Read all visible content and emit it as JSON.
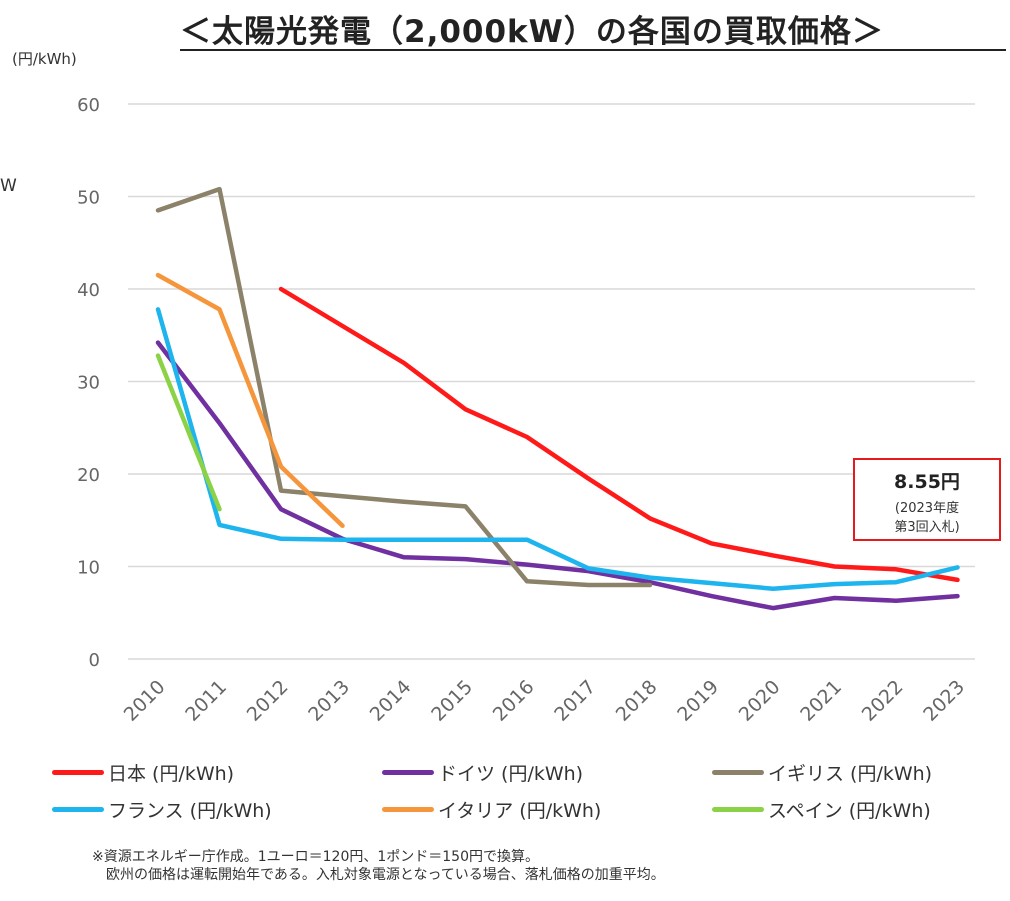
{
  "chart_data": {
    "type": "line",
    "title": "＜太陽光発電（2,000kW）の各国の買取価格＞",
    "ylabel": "(円/kWh)",
    "ylim": [
      0,
      60
    ],
    "yticks": [
      0,
      10,
      20,
      30,
      40,
      50,
      60
    ],
    "categories": [
      "2010",
      "2011",
      "2012",
      "2013",
      "2014",
      "2015",
      "2016",
      "2017",
      "2018",
      "2019",
      "2020",
      "2021",
      "2022",
      "2023"
    ],
    "grid": true,
    "legend_position": "bottom",
    "series": [
      {
        "name": "日本 (円/kWh)",
        "color": "#ff1a1a",
        "values": [
          null,
          null,
          40,
          36,
          32,
          27,
          24,
          19.5,
          15.2,
          12.5,
          11.2,
          10,
          9.7,
          8.55
        ]
      },
      {
        "name": "ドイツ (円/kWh)",
        "color": "#7030a0",
        "values": [
          34.2,
          25.5,
          16.2,
          13,
          11,
          10.8,
          10.2,
          9.5,
          8.3,
          6.8,
          5.5,
          6.6,
          6.3,
          6.8
        ]
      },
      {
        "name": "イギリス (円/kWh)",
        "color": "#8c8269",
        "values": [
          48.5,
          50.8,
          18.2,
          17.6,
          17,
          16.5,
          8.4,
          8,
          8,
          null,
          null,
          null,
          null,
          null
        ]
      },
      {
        "name": "フランス (円/kWh)",
        "color": "#1eb4ee",
        "values": [
          37.8,
          14.5,
          13,
          12.9,
          12.9,
          12.9,
          12.9,
          9.8,
          8.8,
          8.2,
          7.6,
          8.1,
          8.3,
          9.9
        ]
      },
      {
        "name": "イタリア (円/kWh)",
        "color": "#f5963c",
        "values": [
          41.5,
          37.8,
          20.8,
          14.4,
          null,
          null,
          null,
          null,
          null,
          null,
          null,
          null,
          null,
          null
        ]
      },
      {
        "name": "スペイン (円/kWh)",
        "color": "#8cd246",
        "values": [
          32.8,
          16.2,
          null,
          null,
          null,
          null,
          null,
          null,
          null,
          null,
          null,
          null,
          null,
          null
        ]
      }
    ],
    "annotation": {
      "value": "8.55円",
      "line1": "(2023年度",
      "line2": "第3回入札)",
      "border_color": "#e41a1c"
    }
  },
  "stray_label": "W",
  "footnote": {
    "line1": "※資源エネルギー庁作成。1ユーロ＝120円、1ポンド＝150円で換算。",
    "line2": "欧州の価格は運転開始年である。入札対象電源となっている場合、落札価格の加重平均。"
  }
}
